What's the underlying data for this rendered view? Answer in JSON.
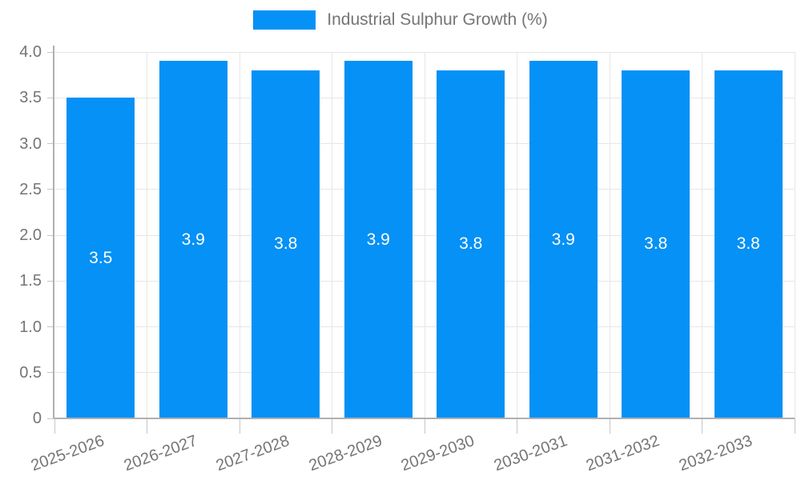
{
  "legend": {
    "label": "Industrial Sulphur Growth (%)"
  },
  "chart_data": {
    "type": "bar",
    "title": "",
    "xlabel": "",
    "ylabel": "",
    "categories": [
      "2025-2026",
      "2026-2027",
      "2027-2028",
      "2028-2029",
      "2029-2030",
      "2030-2031",
      "2031-2032",
      "2032-2033"
    ],
    "series": [
      {
        "name": "Industrial Sulphur Growth (%)",
        "values": [
          3.5,
          3.9,
          3.8,
          3.9,
          3.8,
          3.9,
          3.8,
          3.8
        ]
      }
    ],
    "value_labels_shown": true,
    "ylim": [
      0,
      4
    ],
    "ytick_step": 0.5,
    "ytick_labels": [
      "0",
      "0.5",
      "1.0",
      "1.5",
      "2.0",
      "2.5",
      "3.0",
      "3.5",
      "4.0"
    ],
    "grid": true,
    "legend_position": "top",
    "bar_color": "#0591f5",
    "value_label_color": "#ffffff",
    "axis_text_color": "#757575",
    "gridline_color": "#e6e6e6",
    "axis_line_color": "#b0b0b0",
    "tick_color": "#c6c6c6"
  }
}
